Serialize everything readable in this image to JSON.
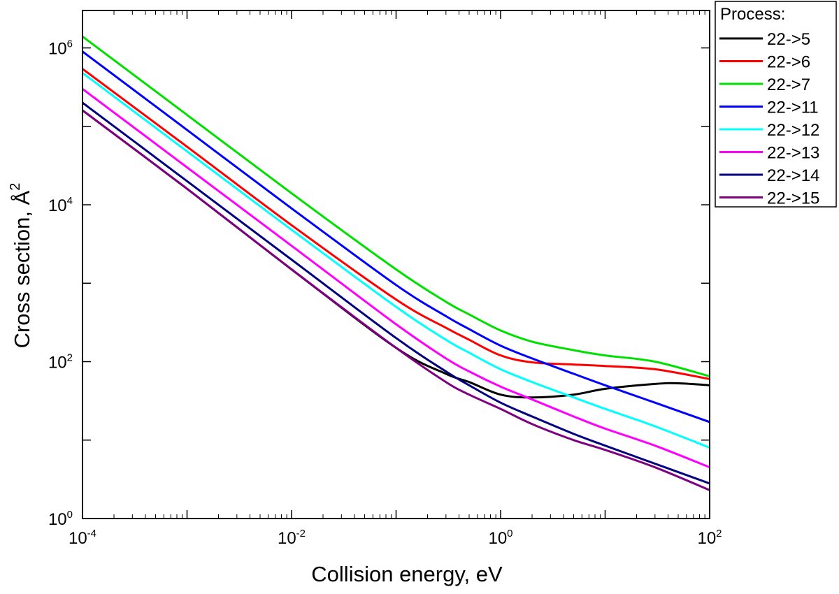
{
  "chart_data": {
    "type": "line",
    "x_scale": "log",
    "y_scale": "log",
    "xlabel": "Collision energy, eV",
    "ylabel_prefix": "Cross section, ",
    "ylabel_unit": "Å",
    "ylabel_exponent": "2",
    "xlim": [
      0.0001,
      100
    ],
    "ylim": [
      1,
      3000000
    ],
    "x_ticks": [
      {
        "base": "10",
        "exp": "-4",
        "value": 0.0001
      },
      {
        "base": "10",
        "exp": "-2",
        "value": 0.01
      },
      {
        "base": "10",
        "exp": "0",
        "value": 1
      },
      {
        "base": "10",
        "exp": "2",
        "value": 100
      }
    ],
    "y_ticks": [
      {
        "base": "10",
        "exp": "0",
        "value": 1
      },
      {
        "base": "10",
        "exp": "2",
        "value": 100
      },
      {
        "base": "10",
        "exp": "4",
        "value": 10000
      },
      {
        "base": "10",
        "exp": "6",
        "value": 1000000
      }
    ],
    "legend": {
      "title": "Process:",
      "position": "outside-top-right"
    },
    "series": [
      {
        "name": "22->5",
        "color": "#000000",
        "x": [
          0.0001,
          0.001,
          0.01,
          0.1,
          0.3,
          0.5,
          1,
          2,
          5,
          10,
          30,
          50,
          100
        ],
        "y": [
          160000,
          16000,
          1500,
          150,
          70,
          55,
          38,
          35,
          38,
          45,
          52,
          53,
          50
        ]
      },
      {
        "name": "22->6",
        "color": "#ff0000",
        "x": [
          0.0001,
          0.001,
          0.01,
          0.1,
          0.3,
          0.5,
          1,
          2,
          5,
          10,
          30,
          100
        ],
        "y": [
          540000,
          55000,
          5500,
          620,
          270,
          190,
          120,
          98,
          92,
          88,
          80,
          60
        ]
      },
      {
        "name": "22->7",
        "color": "#00e000",
        "x": [
          0.0001,
          0.001,
          0.01,
          0.1,
          0.3,
          0.5,
          1,
          2,
          5,
          10,
          30,
          100
        ],
        "y": [
          1400000,
          140000,
          14000,
          1500,
          580,
          400,
          250,
          180,
          140,
          120,
          100,
          65
        ]
      },
      {
        "name": "22->11",
        "color": "#0000ff",
        "x": [
          0.0001,
          0.001,
          0.01,
          0.1,
          0.3,
          0.5,
          1,
          2,
          5,
          10,
          30,
          100
        ],
        "y": [
          900000,
          90000,
          9000,
          950,
          380,
          260,
          160,
          110,
          70,
          50,
          30,
          17
        ]
      },
      {
        "name": "22->12",
        "color": "#00ffff",
        "x": [
          0.0001,
          0.001,
          0.01,
          0.1,
          0.3,
          0.5,
          1,
          2,
          5,
          10,
          30,
          100
        ],
        "y": [
          480000,
          48000,
          4800,
          500,
          190,
          130,
          80,
          55,
          35,
          25,
          15,
          8
        ]
      },
      {
        "name": "22->13",
        "color": "#ff00ff",
        "x": [
          0.0001,
          0.001,
          0.01,
          0.1,
          0.3,
          0.5,
          1,
          2,
          5,
          10,
          30,
          100
        ],
        "y": [
          300000,
          30000,
          3000,
          300,
          110,
          75,
          48,
          33,
          20,
          14,
          8.5,
          4.5
        ]
      },
      {
        "name": "22->14",
        "color": "#000080",
        "x": [
          0.0001,
          0.001,
          0.01,
          0.1,
          0.3,
          0.5,
          1,
          2,
          5,
          10,
          30,
          100
        ],
        "y": [
          200000,
          20000,
          2000,
          200,
          75,
          50,
          30,
          20,
          12,
          8.5,
          5,
          2.8
        ]
      },
      {
        "name": "22->15",
        "color": "#800080",
        "x": [
          0.0001,
          0.001,
          0.01,
          0.1,
          0.3,
          0.5,
          1,
          2,
          5,
          10,
          30,
          100
        ],
        "y": [
          160000,
          16000,
          1500,
          150,
          55,
          38,
          25,
          16,
          10,
          7.5,
          4.5,
          2.3
        ]
      }
    ]
  }
}
